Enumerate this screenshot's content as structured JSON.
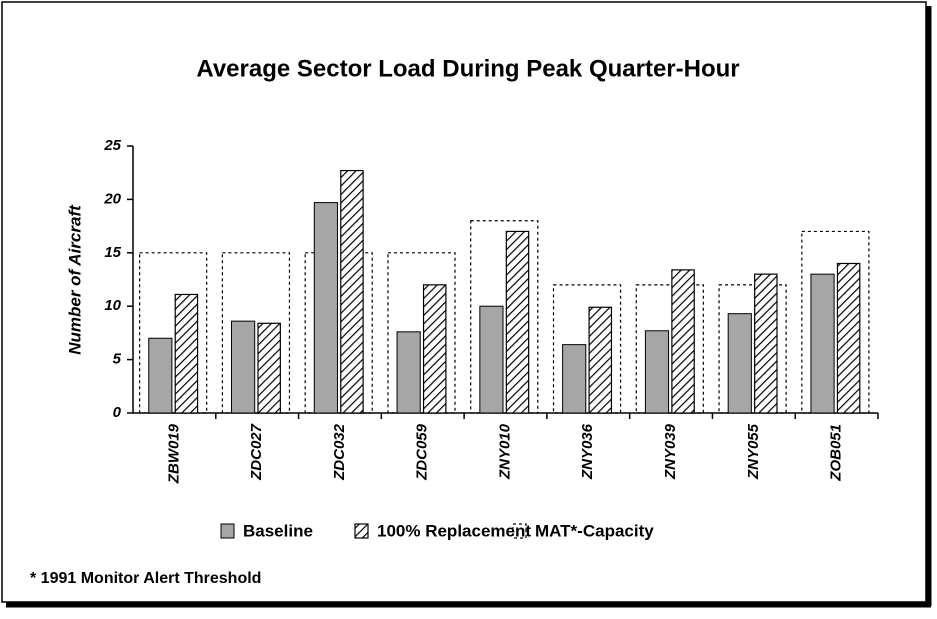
{
  "chart_data": {
    "type": "bar",
    "title": "Average Sector Load During Peak Quarter-Hour",
    "ylabel": "Number of Aircraft",
    "categories": [
      "ZBW019",
      "ZDC027",
      "ZDC032",
      "ZDC059",
      "ZNY010",
      "ZNY036",
      "ZNY039",
      "ZNY055",
      "ZOB051"
    ],
    "series": [
      {
        "name": "Baseline",
        "color": "#a6a6a6",
        "values": [
          7.0,
          8.6,
          19.7,
          7.6,
          10.0,
          6.4,
          7.7,
          9.3,
          13.0
        ]
      },
      {
        "name": "100% Replacement",
        "color": "#000000",
        "values": [
          11.1,
          8.4,
          22.7,
          12.0,
          17.0,
          9.9,
          13.4,
          13.0,
          14.0
        ]
      },
      {
        "name": "MAT*-Capacity",
        "color": "#000000",
        "values": [
          15,
          15,
          15,
          15,
          18,
          12,
          12,
          12,
          17
        ]
      }
    ],
    "ylim": [
      0,
      25
    ],
    "yticks": [
      0,
      5,
      10,
      15,
      20,
      25
    ],
    "annotation": "* 1991 Monitor Alert Threshold"
  }
}
